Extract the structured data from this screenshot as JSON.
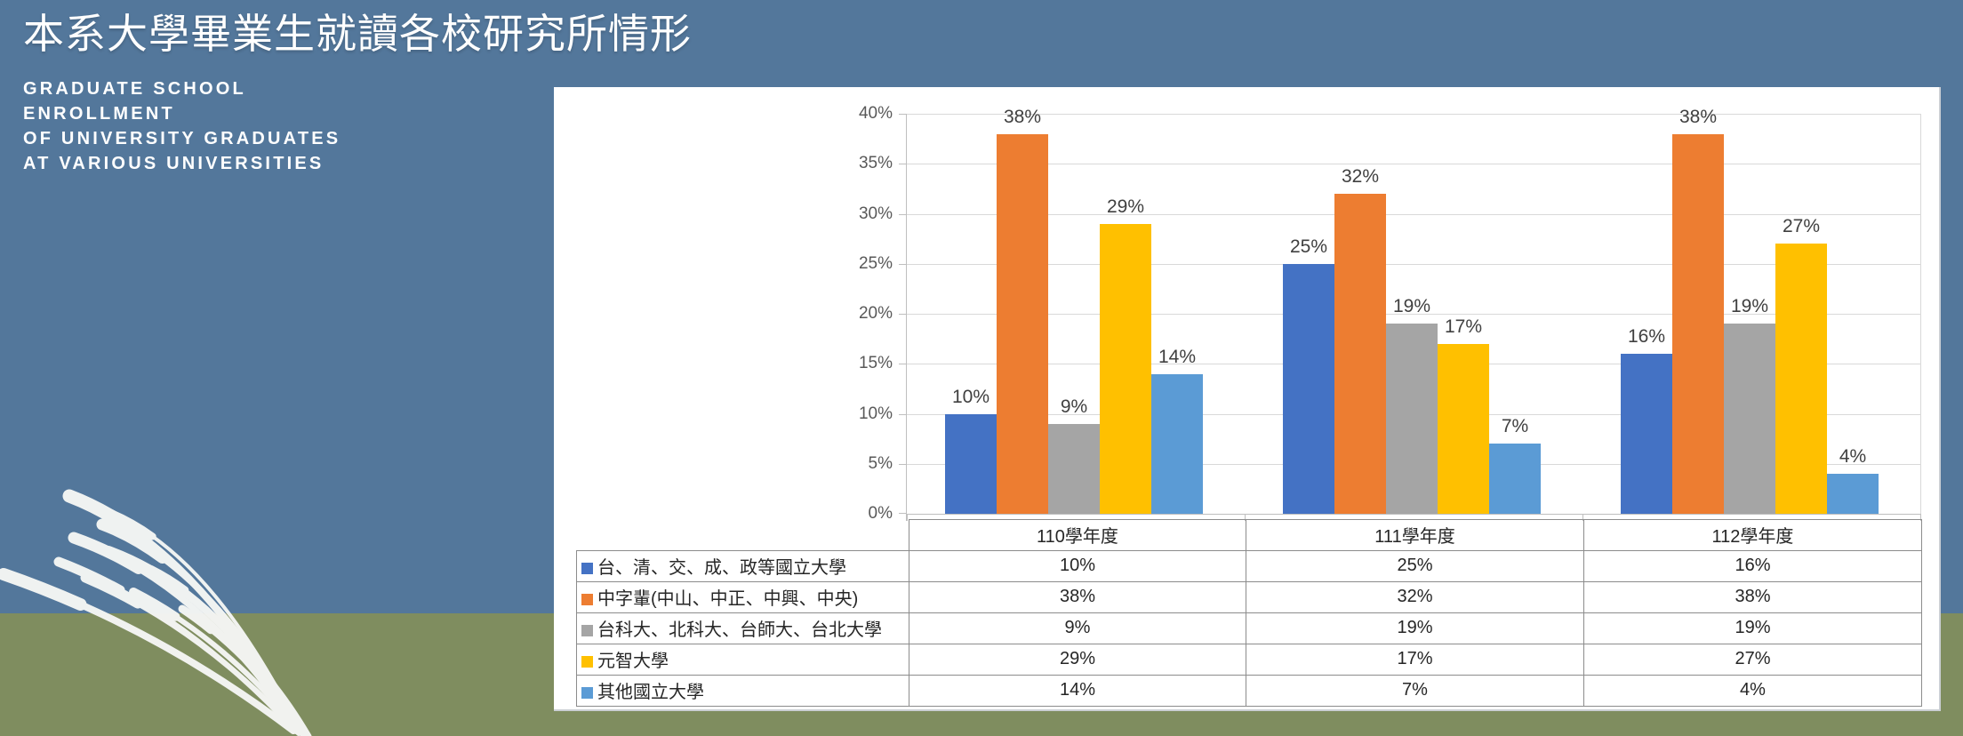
{
  "header": {
    "title_zh": "本系大學畢業生就讀各校研究所情形",
    "subtitle_lines": [
      "GRADUATE SCHOOL",
      "ENROLLMENT",
      "OF UNIVERSITY GRADUATES",
      "AT VARIOUS UNIVERSITIES"
    ]
  },
  "colors": {
    "background_top": "#53779B",
    "background_bottom": "#7F8D5F",
    "panel": "#FFFFFF",
    "gridline": "#D9D9D9",
    "axis_line": "#BFBFBF",
    "table_border": "#8C8C8C",
    "axis_label_text": "#595959",
    "data_label_text": "#404040",
    "grass_decoration": "#F5F6F4"
  },
  "chart_data": {
    "type": "bar",
    "title": "",
    "xlabel": "",
    "ylabel": "",
    "categories": [
      "110學年度",
      "111學年度",
      "112學年度"
    ],
    "series": [
      {
        "name": "台、清、交、成、政等國立大學",
        "color": "#4472C4",
        "values": [
          10,
          25,
          16
        ]
      },
      {
        "name": "中字輩(中山、中正、中興、中央)",
        "color": "#ED7D31",
        "values": [
          38,
          32,
          38
        ]
      },
      {
        "name": "台科大、北科大、台師大、台北大學",
        "color": "#A5A5A5",
        "values": [
          9,
          19,
          19
        ]
      },
      {
        "name": "元智大學",
        "color": "#FFC000",
        "values": [
          29,
          17,
          27
        ]
      },
      {
        "name": "其他國立大學",
        "color": "#5B9BD5",
        "values": [
          14,
          7,
          4
        ]
      }
    ],
    "value_suffix": "%",
    "ylim": [
      0,
      40
    ],
    "ytick_step": 5,
    "ytick_labels": [
      "0%",
      "5%",
      "10%",
      "15%",
      "20%",
      "25%",
      "30%",
      "35%",
      "40%"
    ],
    "grid": true,
    "data_labels": true,
    "legend_position": "data-table-left"
  }
}
